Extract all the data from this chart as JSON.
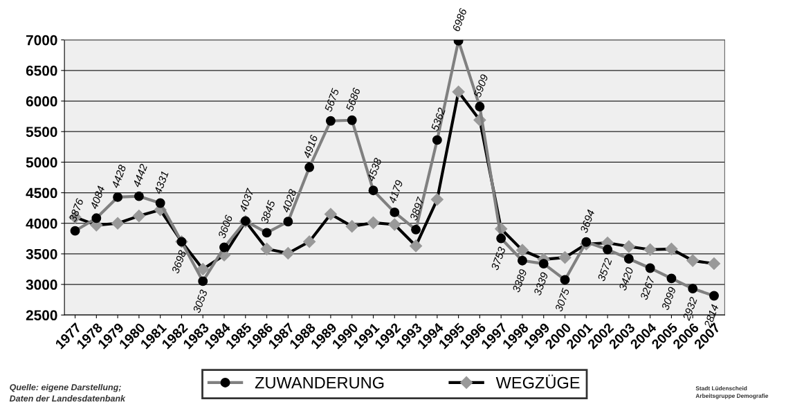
{
  "chart_data": {
    "type": "line",
    "categories": [
      "1977",
      "1978",
      "1979",
      "1980",
      "1981",
      "1982",
      "1983",
      "1984",
      "1985",
      "1986",
      "1987",
      "1988",
      "1989",
      "1990",
      "1991",
      "1992",
      "1993",
      "1994",
      "1995",
      "1996",
      "1997",
      "1998",
      "1999",
      "2000",
      "2001",
      "2002",
      "2003",
      "2004",
      "2005",
      "2006",
      "2007"
    ],
    "series": [
      {
        "name": "ZUWANDERUNG",
        "color": "#808080",
        "marker": "circle",
        "values": [
          3876,
          4084,
          4428,
          4442,
          4331,
          3698,
          3053,
          3606,
          4037,
          3845,
          4028,
          4916,
          5675,
          5686,
          4538,
          4179,
          3897,
          5362,
          6986,
          5909,
          3753,
          3389,
          3339,
          3075,
          3694,
          3572,
          3420,
          3267,
          3099,
          2932,
          2814
        ],
        "value_labels": [
          "3876",
          "4084",
          "4428",
          "4442",
          "4331",
          "3698",
          "3053",
          "3606",
          "4037",
          "3845",
          "4028",
          "4916",
          "5675",
          "5686",
          "4538",
          "4179",
          "3897",
          "5362",
          "6986",
          "5909",
          "3753",
          "3389",
          "3339",
          "3075",
          "3694",
          "3572",
          "3420",
          "3267",
          "3099",
          "2932",
          "2814"
        ]
      },
      {
        "name": "WEGZÜGE",
        "color": "#000000",
        "marker": "diamond",
        "values": [
          4100,
          3970,
          4000,
          4120,
          4220,
          3700,
          3250,
          3480,
          4030,
          3580,
          3510,
          3700,
          4150,
          3950,
          4010,
          3980,
          3630,
          4390,
          6150,
          5690,
          3910,
          3560,
          3410,
          3440,
          3660,
          3680,
          3620,
          3570,
          3580,
          3390,
          3340
        ]
      }
    ],
    "ylim": [
      2500,
      7000
    ],
    "yticks": [
      2500,
      3000,
      3500,
      4000,
      4500,
      5000,
      5500,
      6000,
      6500,
      7000
    ],
    "grid": "y",
    "legend": "bottom",
    "annotations": [
      "Quelle: eigene Darstellung;\nDaten der Landesdatenbank",
      "Stadt Lüdenscheid\nArbeitsgruppe Demografie"
    ]
  }
}
